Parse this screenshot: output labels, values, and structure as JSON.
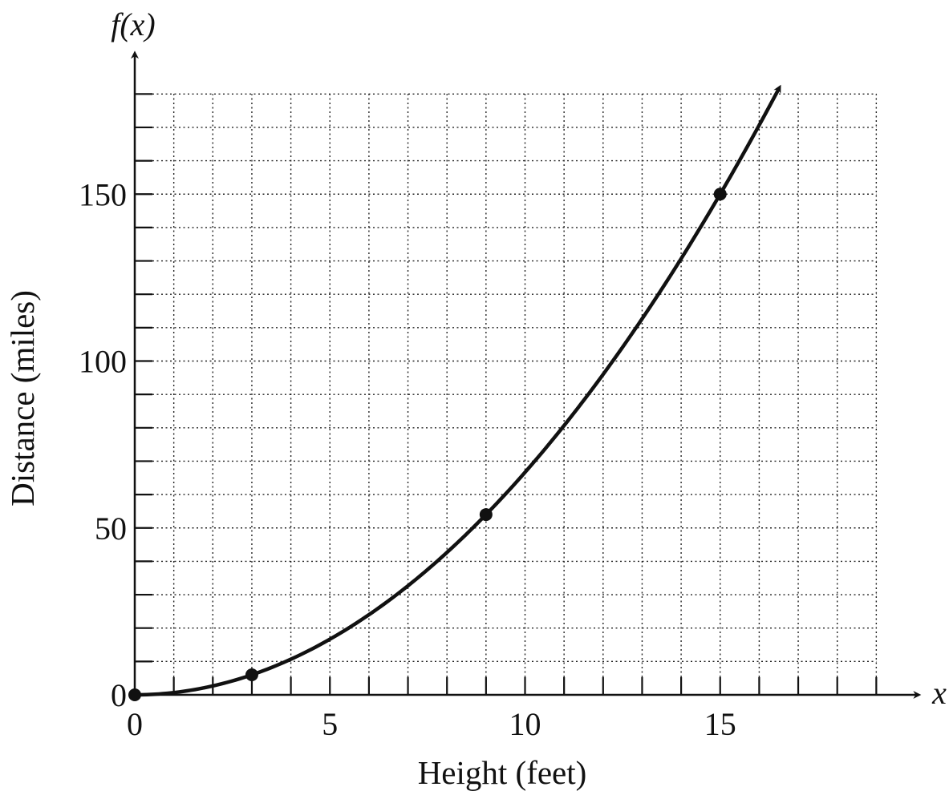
{
  "chart_data": {
    "type": "line",
    "title": "",
    "xlabel": "Height (feet)",
    "ylabel": "Distance (miles)",
    "x_var_label": "x",
    "y_var_label": "f(x)",
    "xlim": [
      0,
      19
    ],
    "ylim": [
      0,
      180
    ],
    "x_ticks": [
      0,
      5,
      10,
      15
    ],
    "y_ticks": [
      0,
      50,
      100,
      150
    ],
    "x_minor_step": 1,
    "y_minor_step": 10,
    "grid": true,
    "series": [
      {
        "curve_end_x": 16.5,
        "points": [
          {
            "x": 0,
            "y": 0
          },
          {
            "x": 3,
            "y": 6
          },
          {
            "x": 9,
            "y": 54
          },
          {
            "x": 15,
            "y": 150
          }
        ]
      }
    ],
    "colors": {
      "ink": "#111111",
      "background": "#ffffff"
    }
  }
}
